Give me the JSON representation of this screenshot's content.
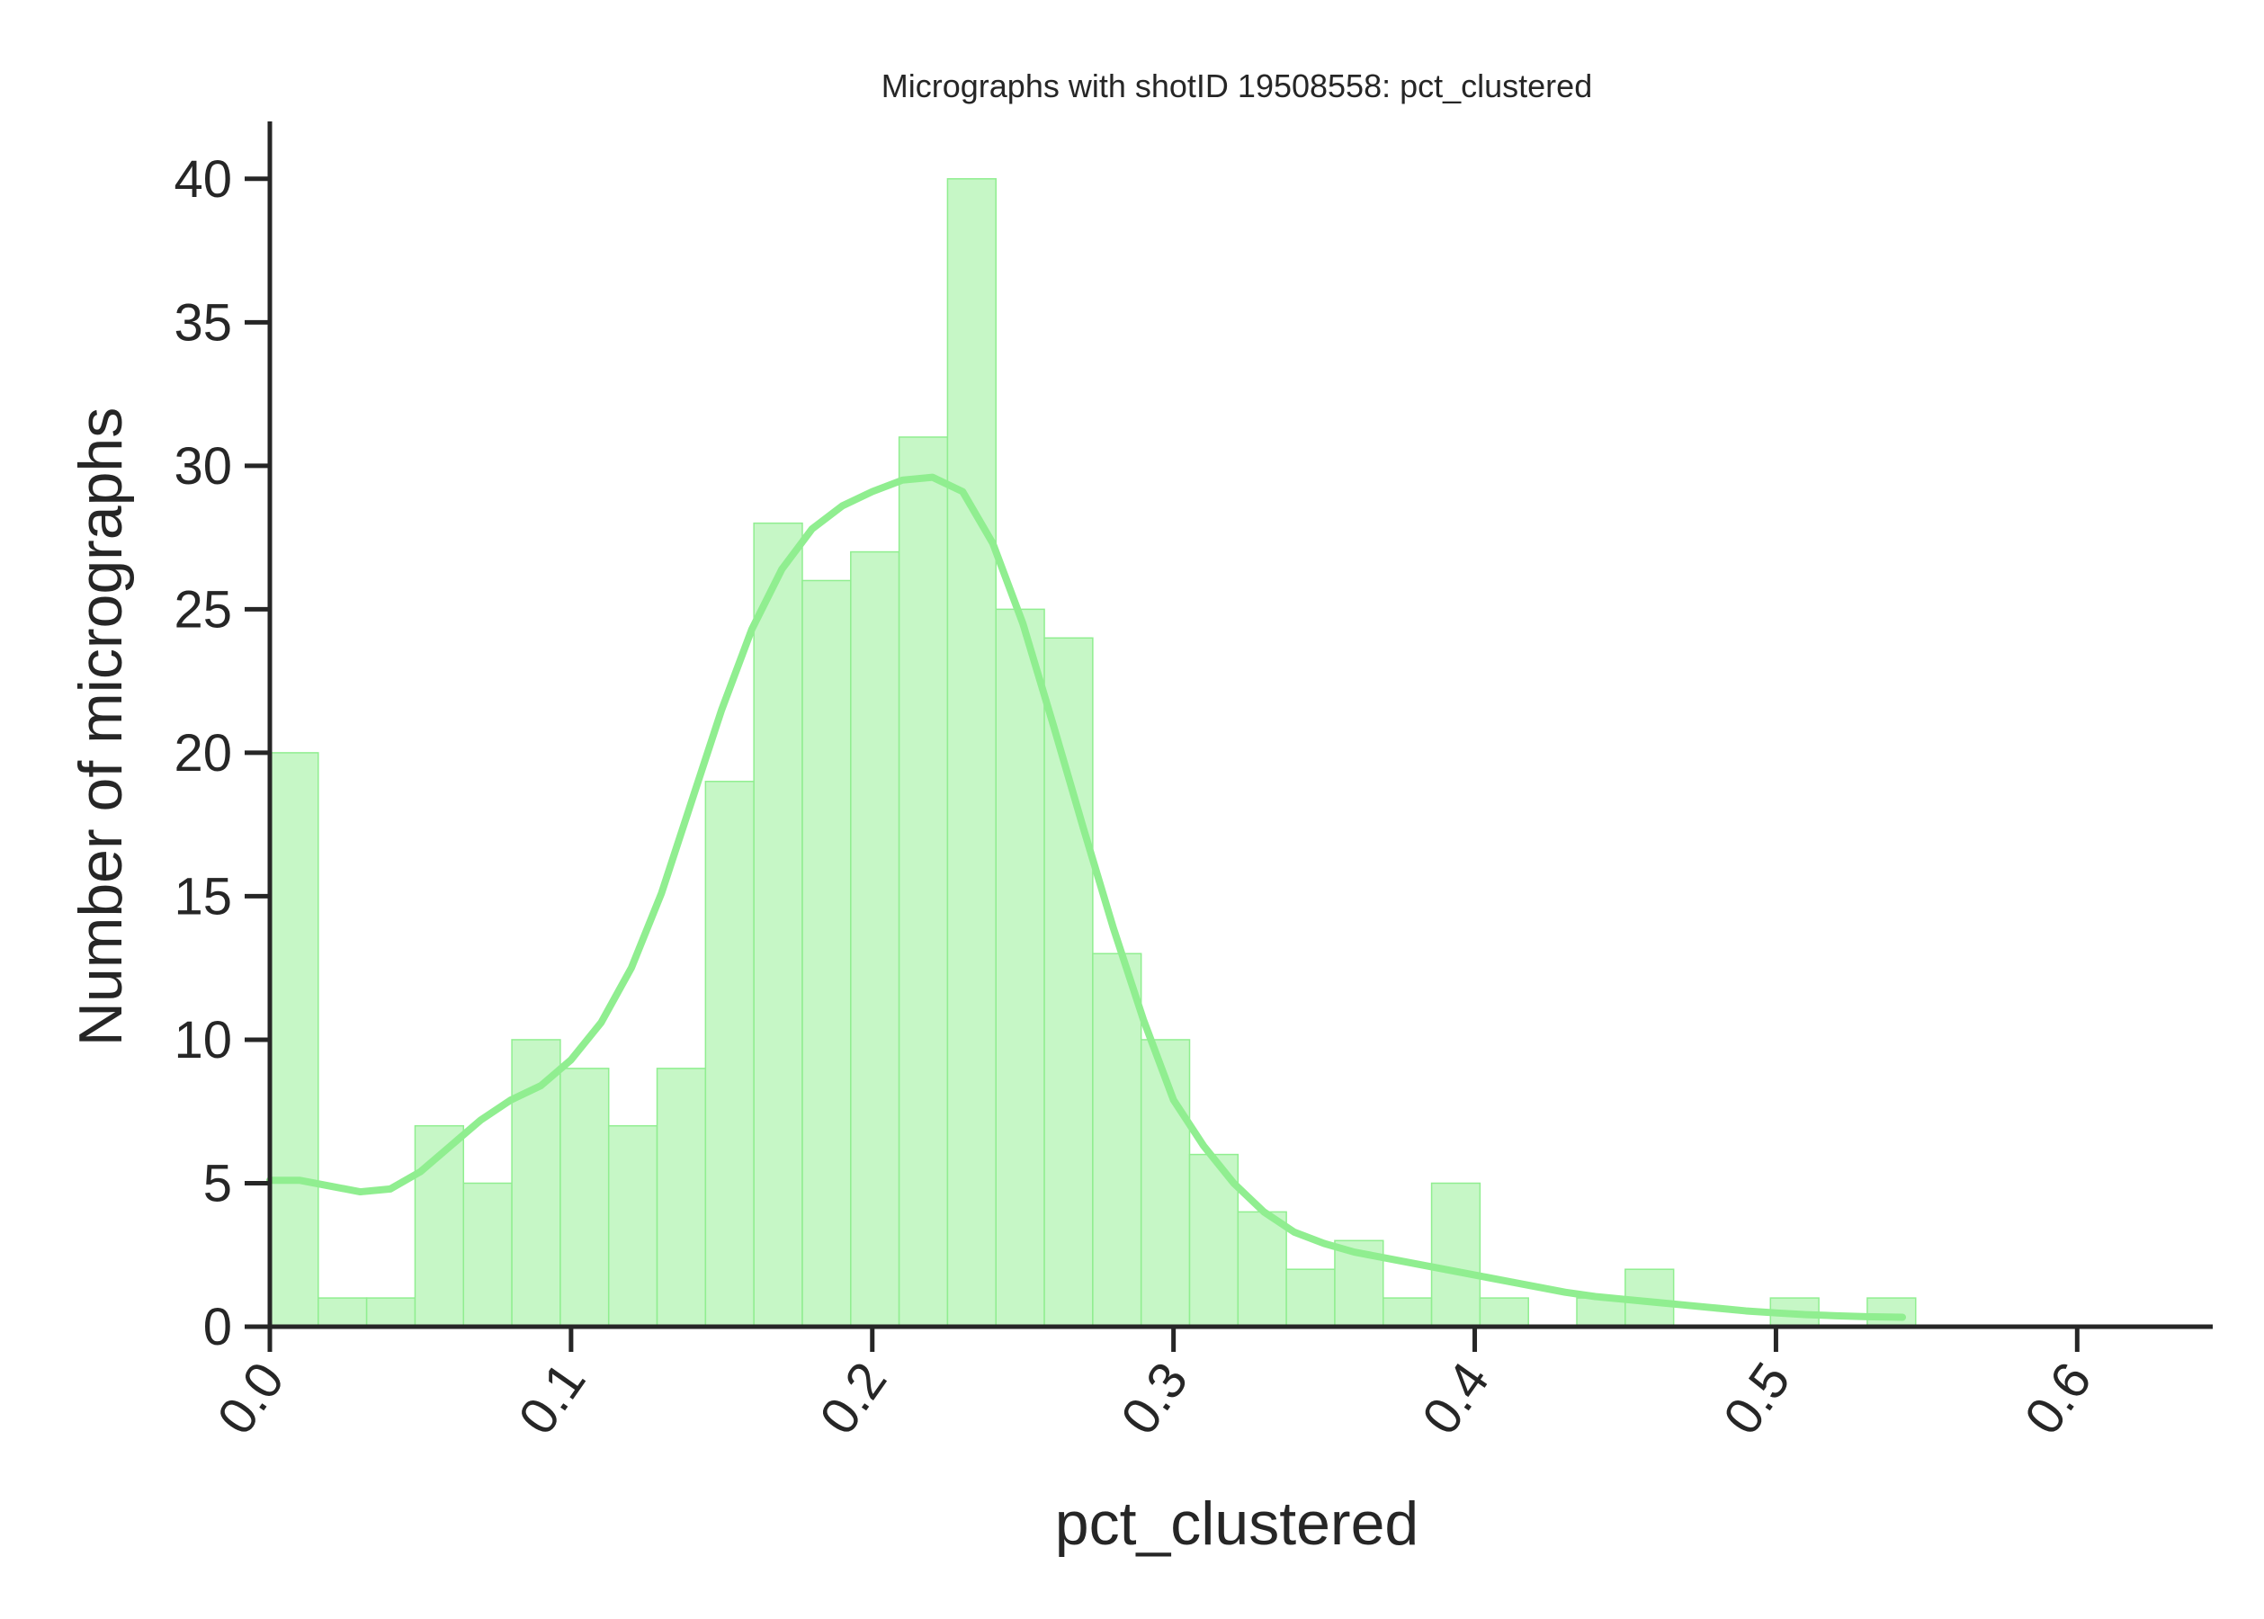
{
  "chart_data": {
    "type": "bar",
    "title": "Micrographs with shotID 19508558: pct_clustered",
    "xlabel": "pct_clustered",
    "ylabel": "Number of micrographs",
    "xlim": [
      0.0,
      0.645
    ],
    "ylim": [
      0,
      42
    ],
    "xticks": [
      "0.0",
      "0.1",
      "0.2",
      "0.3",
      "0.4",
      "0.5",
      "0.6"
    ],
    "xtick_values": [
      0.0,
      0.1,
      0.2,
      0.3,
      0.4,
      0.5,
      0.6
    ],
    "yticks": [
      "0",
      "5",
      "10",
      "15",
      "20",
      "25",
      "30",
      "35",
      "40"
    ],
    "ytick_values": [
      0,
      5,
      10,
      15,
      20,
      25,
      30,
      35,
      40
    ],
    "bin_start": 0.0,
    "bin_width": 0.01607,
    "values": [
      20,
      1,
      1,
      7,
      5,
      10,
      9,
      7,
      9,
      19,
      28,
      26,
      27,
      31,
      40,
      25,
      24,
      13,
      10,
      6,
      4,
      2,
      3,
      1,
      5,
      1,
      0,
      1,
      2,
      0,
      0,
      1,
      0,
      1
    ],
    "kde": {
      "x": [
        0.0,
        0.01,
        0.02,
        0.03,
        0.04,
        0.05,
        0.06,
        0.07,
        0.08,
        0.09,
        0.1,
        0.11,
        0.12,
        0.13,
        0.14,
        0.15,
        0.16,
        0.17,
        0.18,
        0.19,
        0.2,
        0.21,
        0.22,
        0.23,
        0.24,
        0.25,
        0.26,
        0.27,
        0.28,
        0.29,
        0.3,
        0.31,
        0.32,
        0.33,
        0.34,
        0.35,
        0.36,
        0.37,
        0.38,
        0.39,
        0.4,
        0.41,
        0.42,
        0.43,
        0.44,
        0.45,
        0.46,
        0.47,
        0.48,
        0.49,
        0.5,
        0.51,
        0.52,
        0.53,
        0.542
      ],
      "y": [
        5.1,
        5.1,
        4.9,
        4.7,
        4.8,
        5.4,
        6.3,
        7.2,
        7.9,
        8.4,
        9.3,
        10.6,
        12.5,
        15.1,
        18.3,
        21.5,
        24.3,
        26.4,
        27.8,
        28.6,
        29.1,
        29.5,
        29.6,
        29.1,
        27.3,
        24.5,
        21.0,
        17.4,
        13.9,
        10.7,
        7.9,
        6.3,
        5.0,
        4.0,
        3.3,
        2.9,
        2.6,
        2.4,
        2.2,
        2.0,
        1.8,
        1.6,
        1.4,
        1.2,
        1.05,
        0.95,
        0.85,
        0.75,
        0.65,
        0.55,
        0.48,
        0.42,
        0.38,
        0.35,
        0.33
      ]
    },
    "colors": {
      "bar_fill": "#c6f7c6",
      "bar_edge": "#90ee90",
      "kde_line": "#90ee90",
      "axis": "#262626"
    },
    "grid": false,
    "legend": "none"
  }
}
